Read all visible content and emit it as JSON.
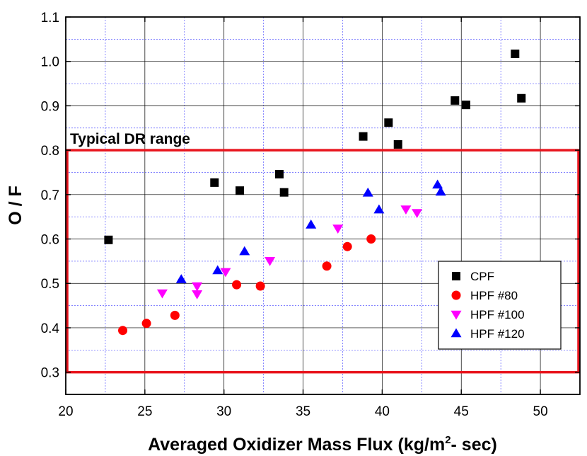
{
  "chart_data": {
    "type": "scatter",
    "title": "",
    "xlabel": "Averaged Oxidizer Mass Flux (kg/m",
    "xlabel_sup": "2",
    "xlabel_tail": "- sec)",
    "ylabel": "O / F",
    "xlim": [
      20,
      52.5
    ],
    "ylim": [
      0.25,
      1.1
    ],
    "x_ticks": [
      "20",
      "25",
      "30",
      "35",
      "40",
      "45",
      "50"
    ],
    "y_ticks": [
      "0.3",
      "0.4",
      "0.5",
      "0.6",
      "0.7",
      "0.8",
      "0.9",
      "1.0",
      "1.1"
    ],
    "grid": true,
    "legend_position": "bottom-right",
    "series": [
      {
        "name": "CPF",
        "marker": "square",
        "color": "#000000",
        "points": [
          [
            22.7,
            0.598
          ],
          [
            29.4,
            0.727
          ],
          [
            31.0,
            0.709
          ],
          [
            33.5,
            0.746
          ],
          [
            33.8,
            0.705
          ],
          [
            38.8,
            0.831
          ],
          [
            40.4,
            0.862
          ],
          [
            41.0,
            0.813
          ],
          [
            44.6,
            0.912
          ],
          [
            45.3,
            0.902
          ],
          [
            48.4,
            1.017
          ],
          [
            48.8,
            0.917
          ]
        ]
      },
      {
        "name": "HPF #80",
        "marker": "circle",
        "color": "#ff0000",
        "points": [
          [
            23.6,
            0.394
          ],
          [
            25.1,
            0.41
          ],
          [
            26.9,
            0.428
          ],
          [
            30.8,
            0.497
          ],
          [
            32.3,
            0.494
          ],
          [
            36.5,
            0.539
          ],
          [
            37.8,
            0.583
          ],
          [
            39.3,
            0.6
          ]
        ]
      },
      {
        "name": "HPF #100",
        "marker": "triangle-down",
        "color": "#ff00ff",
        "points": [
          [
            26.1,
            0.478
          ],
          [
            28.3,
            0.494
          ],
          [
            28.3,
            0.476
          ],
          [
            30.1,
            0.526
          ],
          [
            32.9,
            0.551
          ],
          [
            37.2,
            0.624
          ],
          [
            41.5,
            0.667
          ],
          [
            42.2,
            0.659
          ]
        ]
      },
      {
        "name": "HPF #120",
        "marker": "triangle-up",
        "color": "#0000ff",
        "points": [
          [
            27.3,
            0.509
          ],
          [
            29.6,
            0.529
          ],
          [
            31.3,
            0.572
          ],
          [
            35.5,
            0.632
          ],
          [
            39.1,
            0.704
          ],
          [
            39.8,
            0.666
          ],
          [
            43.5,
            0.722
          ],
          [
            43.7,
            0.706
          ]
        ]
      }
    ],
    "annotations": [
      {
        "text": "Typical DR range",
        "region": {
          "x": [
            20,
            52.5
          ],
          "y": [
            0.3,
            0.8
          ]
        },
        "color": "#e8141c"
      }
    ]
  }
}
